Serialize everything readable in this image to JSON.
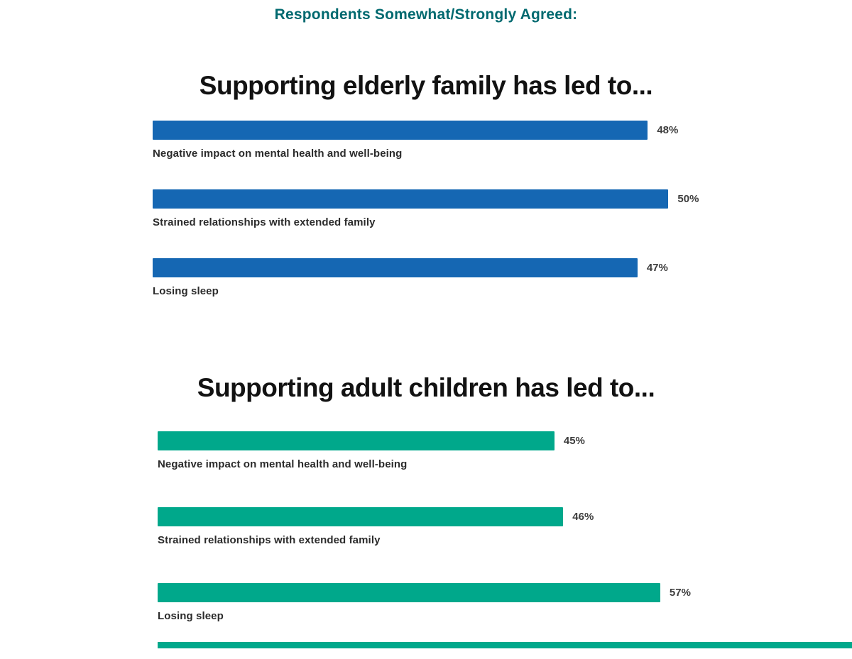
{
  "header": {
    "title": "Respondents Somewhat/Strongly Agreed:"
  },
  "colors": {
    "title_text": "#00696f",
    "heading_text": "#121212",
    "elderly_bar": "#1567b3",
    "adult_children_bar": "#00a88b",
    "label_text": "#2b2b2b"
  },
  "chart_data": [
    {
      "type": "bar",
      "orientation": "horizontal",
      "title": "Supporting elderly family has led to...",
      "bar_color": "#1567b3",
      "categories": [
        "Negative impact on mental health and well-being",
        "Strained relationships with extended family",
        "Losing sleep"
      ],
      "values": [
        48,
        50,
        47
      ],
      "value_labels": [
        "48%",
        "50%",
        "47%"
      ],
      "xlim": [
        0,
        53
      ],
      "grid": false,
      "legend": "none"
    },
    {
      "type": "bar",
      "orientation": "horizontal",
      "title": "Supporting adult children has led to...",
      "bar_color": "#00a88b",
      "categories": [
        "Negative impact on mental health and well-being",
        "Strained relationships with extended family",
        "Losing sleep"
      ],
      "values": [
        45,
        46,
        57
      ],
      "value_labels": [
        "45%",
        "46%",
        "57%"
      ],
      "xlim": [
        0,
        62
      ],
      "grid": false,
      "legend": "none"
    }
  ]
}
